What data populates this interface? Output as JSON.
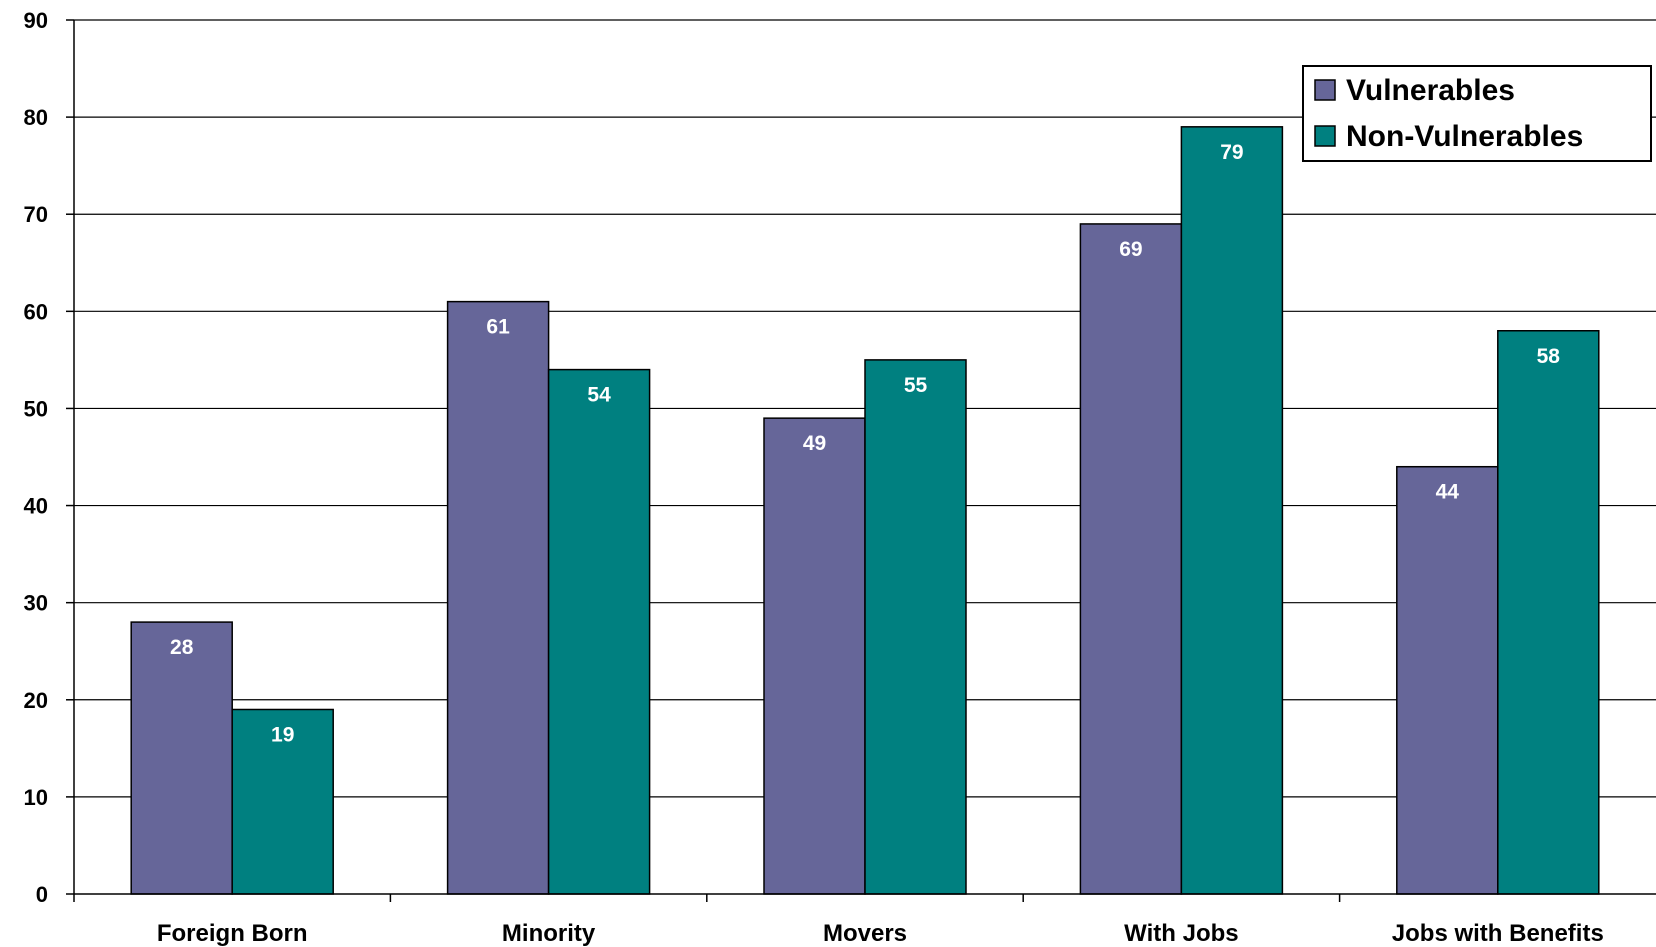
{
  "chart_data": {
    "type": "bar",
    "categories": [
      "Foreign Born",
      "Minority",
      "Movers",
      "With Jobs",
      "Jobs with Benefits"
    ],
    "series": [
      {
        "name": "Vulnerables",
        "color": "#666699",
        "values": [
          28,
          61,
          49,
          69,
          44
        ]
      },
      {
        "name": "Non-Vulnerables",
        "color": "#008080",
        "values": [
          19,
          54,
          55,
          79,
          58
        ]
      }
    ],
    "title": "",
    "xlabel": "",
    "ylabel": "",
    "ylim": [
      0,
      90
    ],
    "yticks": [
      0,
      10,
      20,
      30,
      40,
      50,
      60,
      70,
      80,
      90
    ],
    "grid": true,
    "legend_position": "top-right",
    "data_labels": true
  }
}
